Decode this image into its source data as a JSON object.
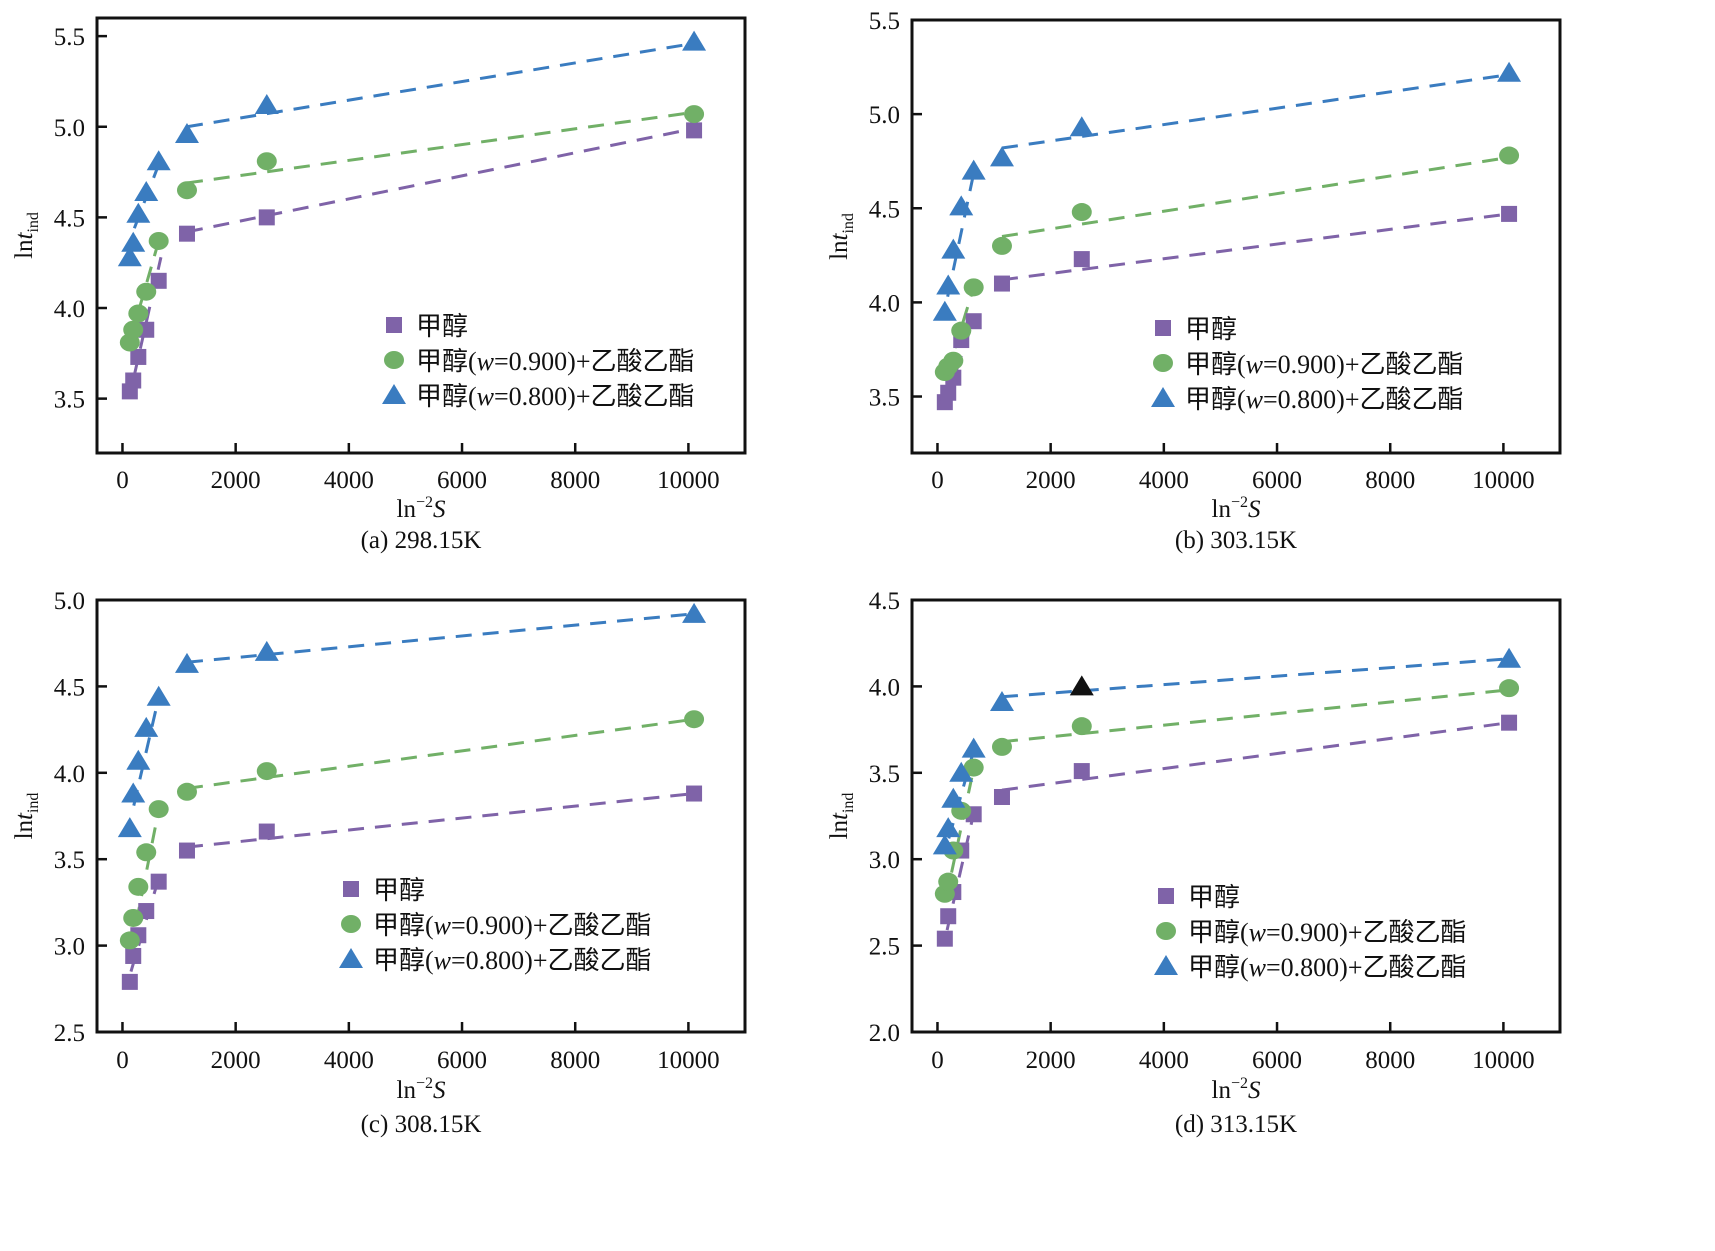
{
  "figure": {
    "legend_labels": [
      "甲醇",
      "甲醇(w=0.900)+乙酸乙酯",
      "甲醇(w=0.800)+乙酸乙酯"
    ],
    "series_colors": {
      "methanol": "#7f63a8",
      "w0900": "#71b067",
      "w0800": "#3a7cc0"
    }
  },
  "chart_data": [
    {
      "type": "scatter",
      "panel": "a",
      "caption": "(a) 298.15K",
      "xlabel": "ln⁻²S",
      "ylabel": "lnt_ind",
      "xlim": [
        -450,
        11000
      ],
      "ylim": [
        3.2,
        5.6
      ],
      "xticks": [
        0,
        2000,
        4000,
        6000,
        8000,
        10000
      ],
      "yticks": [
        3.5,
        4.0,
        4.5,
        5.0,
        5.5
      ],
      "ytick_labels": [
        "3.5",
        "4.0",
        "4.5",
        "5.0",
        "5.5"
      ],
      "legend_position": "lower-right",
      "grid": false,
      "series": [
        {
          "name": "甲醇",
          "marker": "square",
          "color": "#7f63a8",
          "x": [
            130,
            190,
            280,
            420,
            640,
            1140,
            2550,
            10100
          ],
          "y": [
            3.54,
            3.6,
            3.73,
            3.88,
            4.15,
            4.41,
            4.5,
            4.98
          ],
          "fit_segments": [
            [
              [
                210,
                3.63
              ],
              [
                680,
                4.28
              ]
            ],
            [
              [
                1140,
                4.42
              ],
              [
                10100,
                4.99
              ]
            ]
          ]
        },
        {
          "name": "甲醇(w=0.900)+乙酸乙酯",
          "marker": "circle",
          "color": "#71b067",
          "x": [
            130,
            190,
            280,
            420,
            640,
            1140,
            2550,
            10100
          ],
          "y": [
            3.81,
            3.88,
            3.97,
            4.09,
            4.37,
            4.65,
            4.81,
            5.07
          ],
          "fit_segments": [
            [
              [
                300,
                4.0
              ],
              [
                650,
                4.38
              ]
            ],
            [
              [
                1140,
                4.69
              ],
              [
                10100,
                5.08
              ]
            ]
          ]
        },
        {
          "name": "甲醇(w=0.800)+乙酸乙酯",
          "marker": "triangle",
          "color": "#3a7cc0",
          "x": [
            130,
            190,
            280,
            420,
            640,
            1140,
            2550,
            10100
          ],
          "y": [
            4.28,
            4.36,
            4.52,
            4.64,
            4.81,
            4.96,
            5.12,
            5.47
          ],
          "fit_segments": [
            [
              [
                210,
                4.44
              ],
              [
                650,
                4.8
              ]
            ],
            [
              [
                1140,
                5.0
              ],
              [
                10100,
                5.46
              ]
            ]
          ]
        }
      ]
    },
    {
      "type": "scatter",
      "panel": "b",
      "caption": "(b) 303.15K",
      "xlabel": "ln⁻²S",
      "ylabel": "lnt_ind",
      "xlim": [
        -450,
        11000
      ],
      "ylim": [
        3.2,
        5.5
      ],
      "xticks": [
        0,
        2000,
        4000,
        6000,
        8000,
        10000
      ],
      "yticks": [
        3.5,
        4.0,
        4.5,
        5.0,
        5.5
      ],
      "ytick_labels": [
        "3.5",
        "4.0",
        "4.5",
        "5.0",
        "5.5"
      ],
      "legend_position": "lower-right",
      "grid": false,
      "series": [
        {
          "name": "甲醇",
          "marker": "square",
          "color": "#7f63a8",
          "x": [
            130,
            190,
            280,
            420,
            640,
            1140,
            2550,
            10100
          ],
          "y": [
            3.47,
            3.52,
            3.6,
            3.8,
            3.9,
            4.1,
            4.23,
            4.47
          ],
          "fit_segments": [
            [
              [
                180,
                3.5
              ],
              [
                660,
                3.93
              ]
            ],
            [
              [
                1140,
                4.12
              ],
              [
                10100,
                4.47
              ]
            ]
          ]
        },
        {
          "name": "甲醇(w=0.900)+乙酸乙酯",
          "marker": "circle",
          "color": "#71b067",
          "x": [
            130,
            190,
            280,
            420,
            640,
            1140,
            2550,
            10100
          ],
          "y": [
            3.63,
            3.66,
            3.69,
            3.85,
            4.08,
            4.3,
            4.48,
            4.78
          ],
          "fit_segments": [
            [
              [
                170,
                3.62
              ],
              [
                650,
                4.09
              ]
            ],
            [
              [
                1140,
                4.35
              ],
              [
                10100,
                4.77
              ]
            ]
          ]
        },
        {
          "name": "甲醇(w=0.800)+乙酸乙酯",
          "marker": "triangle",
          "color": "#3a7cc0",
          "x": [
            130,
            190,
            280,
            420,
            640,
            1140,
            2550,
            10100
          ],
          "y": [
            3.95,
            4.09,
            4.28,
            4.51,
            4.7,
            4.77,
            4.93,
            5.22
          ],
          "fit_segments": [
            [
              [
                180,
                4.03
              ],
              [
                650,
                4.7
              ]
            ],
            [
              [
                1140,
                4.82
              ],
              [
                10100,
                5.21
              ]
            ]
          ]
        }
      ]
    },
    {
      "type": "scatter",
      "panel": "c",
      "caption": "(c) 308.15K",
      "xlabel": "ln⁻²S",
      "ylabel": "lnt_ind",
      "xlim": [
        -450,
        11000
      ],
      "ylim": [
        2.5,
        5.0
      ],
      "xticks": [
        0,
        2000,
        4000,
        6000,
        8000,
        10000
      ],
      "yticks": [
        2.5,
        3.0,
        3.5,
        4.0,
        4.5,
        5.0
      ],
      "ytick_labels": [
        "2.5",
        "3.0",
        "3.5",
        "4.0",
        "4.5",
        "5.0"
      ],
      "legend_position": "lower-right",
      "grid": false,
      "series": [
        {
          "name": "甲醇",
          "marker": "square",
          "color": "#7f63a8",
          "x": [
            130,
            190,
            280,
            420,
            640,
            1140,
            2550,
            10100
          ],
          "y": [
            2.79,
            2.94,
            3.06,
            3.2,
            3.37,
            3.55,
            3.66,
            3.88
          ],
          "fit_segments": [
            [
              [
                150,
                2.85
              ],
              [
                650,
                3.4
              ]
            ],
            [
              [
                1140,
                3.57
              ],
              [
                10100,
                3.88
              ]
            ]
          ]
        },
        {
          "name": "甲醇(w=0.900)+乙酸乙酯",
          "marker": "circle",
          "color": "#71b067",
          "x": [
            130,
            190,
            280,
            420,
            640,
            1140,
            2550,
            10100
          ],
          "y": [
            3.03,
            3.16,
            3.34,
            3.54,
            3.79,
            3.89,
            4.01,
            4.31
          ],
          "fit_segments": [
            [
              [
                150,
                2.98
              ],
              [
                650,
                3.8
              ]
            ],
            [
              [
                1140,
                3.91
              ],
              [
                10100,
                4.31
              ]
            ]
          ]
        },
        {
          "name": "甲醇(w=0.800)+乙酸乙酯",
          "marker": "triangle",
          "color": "#3a7cc0",
          "x": [
            130,
            190,
            280,
            420,
            640,
            1140,
            2550,
            10100
          ],
          "y": [
            3.68,
            3.88,
            4.07,
            4.26,
            4.44,
            4.63,
            4.7,
            4.92
          ],
          "fit_segments": [
            [
              [
                200,
                3.81
              ],
              [
                650,
                4.45
              ]
            ],
            [
              [
                1140,
                4.64
              ],
              [
                10100,
                4.92
              ]
            ]
          ]
        }
      ]
    },
    {
      "type": "scatter",
      "panel": "d",
      "caption": "(d) 313.15K",
      "xlabel": "ln⁻²S",
      "ylabel": "lnt_ind",
      "xlim": [
        -450,
        11000
      ],
      "ylim": [
        2.0,
        4.5
      ],
      "xticks": [
        0,
        2000,
        4000,
        6000,
        8000,
        10000
      ],
      "yticks": [
        2.0,
        2.5,
        3.0,
        3.5,
        4.0,
        4.5
      ],
      "ytick_labels": [
        "2.0",
        "2.5",
        "3.0",
        "3.5",
        "4.0",
        "4.5"
      ],
      "legend_position": "lower-right",
      "grid": false,
      "series": [
        {
          "name": "甲醇",
          "marker": "square",
          "color": "#7f63a8",
          "x": [
            130,
            190,
            280,
            420,
            640,
            1140,
            2550,
            10100
          ],
          "y": [
            2.54,
            2.67,
            2.81,
            3.05,
            3.26,
            3.36,
            3.51,
            3.79
          ],
          "fit_segments": [
            [
              [
                170,
                2.59
              ],
              [
                650,
                3.28
              ]
            ],
            [
              [
                1140,
                3.4
              ],
              [
                10100,
                3.79
              ]
            ]
          ]
        },
        {
          "name": "甲醇(w=0.900)+乙酸乙酯",
          "marker": "circle",
          "color": "#71b067",
          "x": [
            130,
            190,
            280,
            420,
            640,
            1140,
            2550,
            10100
          ],
          "y": [
            2.8,
            2.87,
            3.05,
            3.28,
            3.53,
            3.65,
            3.77,
            3.99
          ],
          "fit_segments": [
            [
              [
                150,
                2.77
              ],
              [
                650,
                3.54
              ]
            ],
            [
              [
                1140,
                3.68
              ],
              [
                10100,
                3.98
              ]
            ]
          ]
        },
        {
          "name": "甲醇(w=0.800)+乙酸乙酯",
          "marker": "triangle",
          "color": "#3a7cc0",
          "x": [
            130,
            190,
            280,
            420,
            640,
            1140,
            2550,
            10100
          ],
          "y": [
            3.08,
            3.18,
            3.35,
            3.5,
            3.64,
            3.91,
            4.0,
            4.16
          ],
          "highlight_index": 6,
          "highlight_color": "#111111",
          "fit_segments": [
            [
              [
                200,
                3.12
              ],
              [
                650,
                3.64
              ]
            ],
            [
              [
                1140,
                3.94
              ],
              [
                10100,
                4.16
              ]
            ]
          ]
        }
      ]
    }
  ]
}
